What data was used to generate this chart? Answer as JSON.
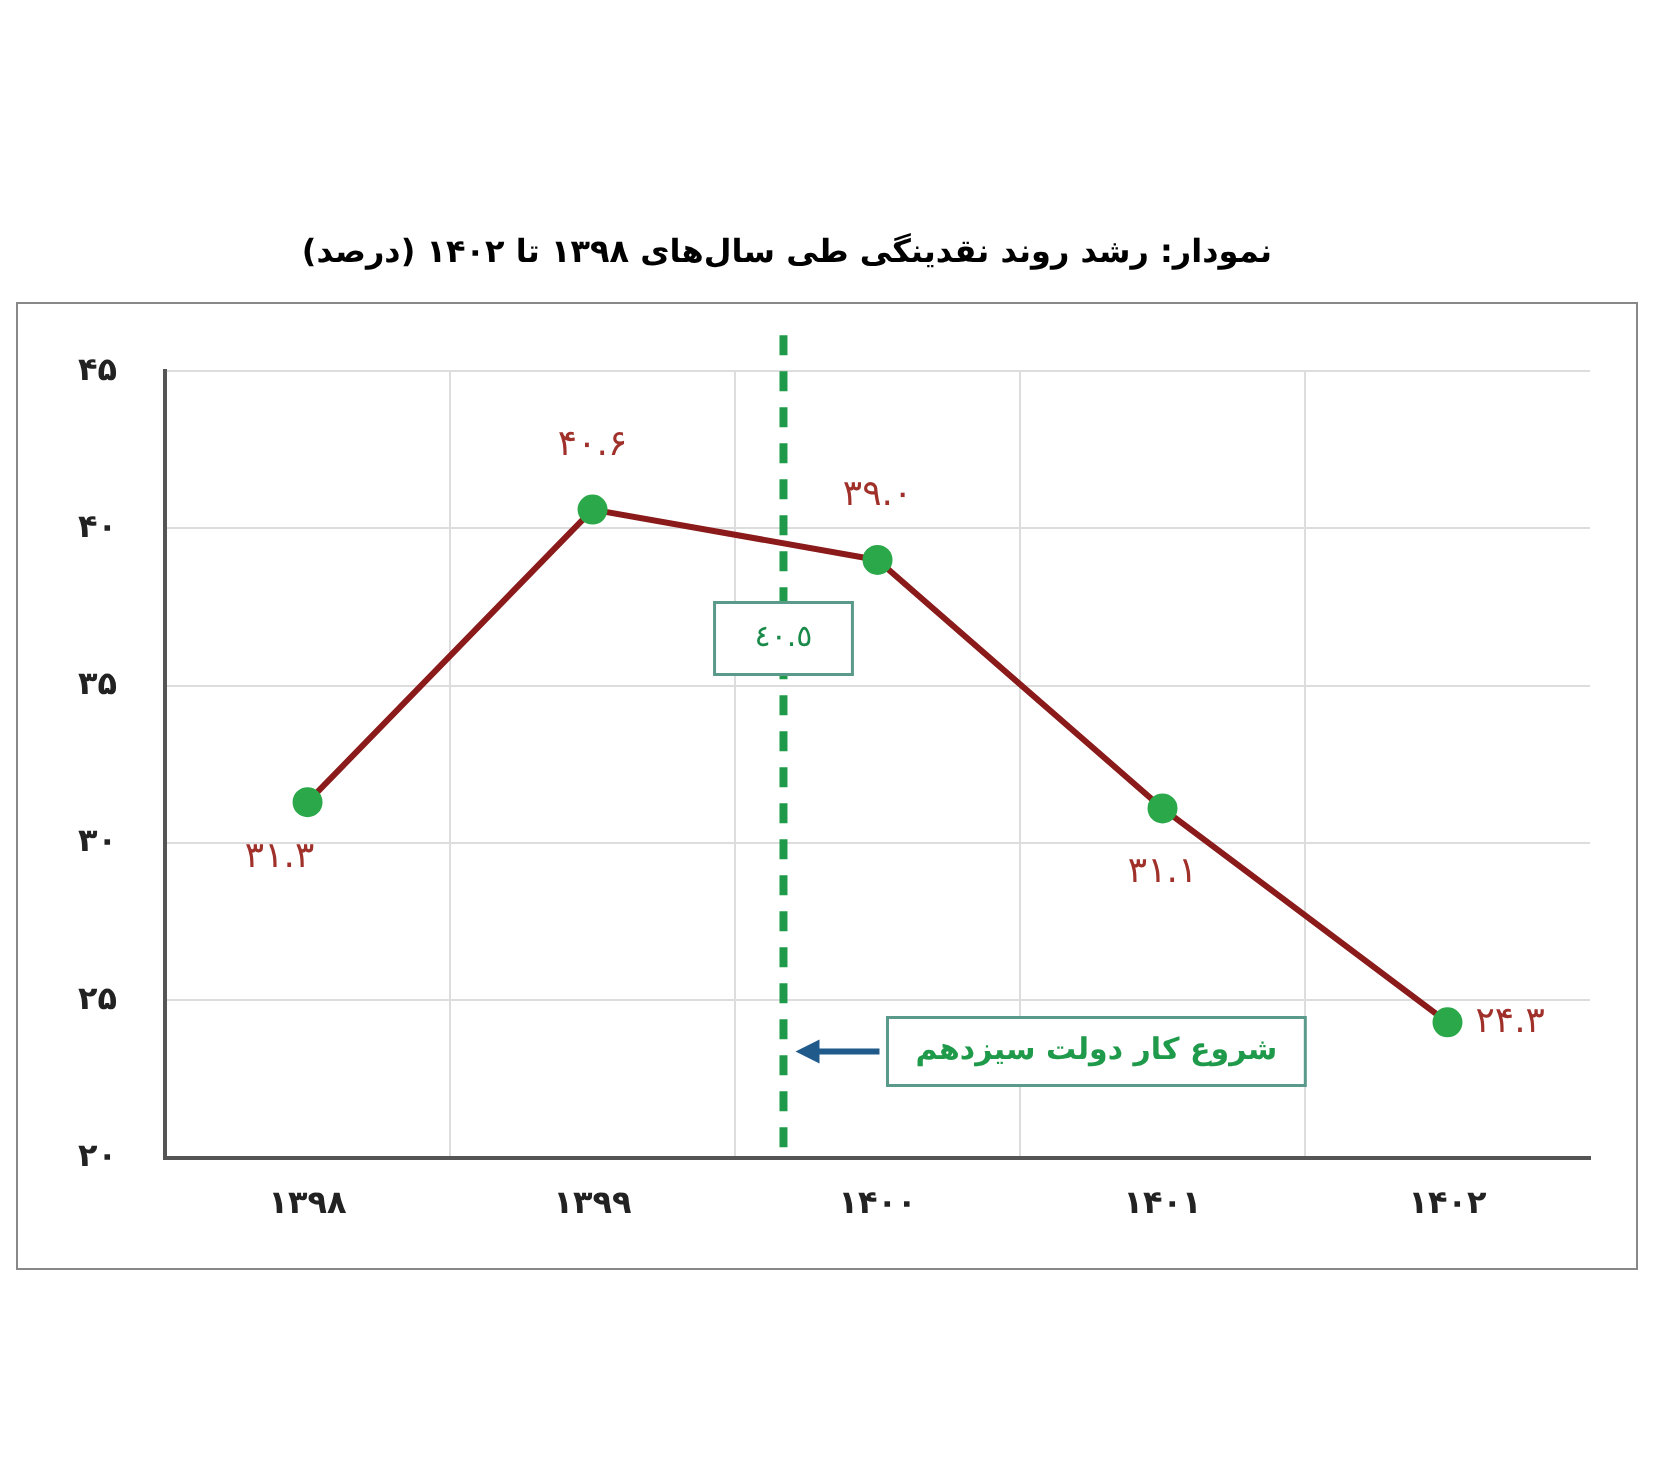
{
  "chart_data": {
    "type": "line",
    "title": "نمودار: رشد روند نقدینگی طی سال‌های ۱۳۹۸ تا ۱۴۰۲ (درصد)",
    "x": [
      1398,
      1399,
      1400,
      1401,
      1402
    ],
    "series": [
      {
        "color": "#8b1a1a",
        "values": [
          31.3,
          40.6,
          39.0,
          31.1,
          24.3
        ],
        "value_labels": [
          "۳۱.۳",
          "۴۰.۶",
          "۳۹.۰",
          "۳۱.۱",
          "۲۴.۳"
        ]
      }
    ],
    "marker": "circle",
    "xlim": [
      1397.5,
      1402.5
    ],
    "xticks": [
      {
        "value": 1398,
        "label": "۱۳۹۸"
      },
      {
        "value": 1398.5,
        "label": null
      },
      {
        "value": 1399,
        "label": "۱۳۹۹"
      },
      {
        "value": 1399.5,
        "label": null
      },
      {
        "value": 1400,
        "label": "۱۴۰۰"
      },
      {
        "value": 1400.5,
        "label": null
      },
      {
        "value": 1401,
        "label": "۱۴۰۱"
      },
      {
        "value": 1401.5,
        "label": null
      },
      {
        "value": 1402,
        "label": "۱۴۰۲"
      }
    ],
    "ylim": [
      20,
      45
    ],
    "yticks": [
      {
        "value": 20,
        "label": "۲۰"
      },
      {
        "value": 25,
        "label": "۲۵"
      },
      {
        "value": 30,
        "label": "۳۰"
      },
      {
        "value": 35,
        "label": "۳۵"
      },
      {
        "value": 40,
        "label": "۴۰"
      },
      {
        "value": 45,
        "label": "۴۵"
      }
    ],
    "grid": true,
    "ref_lines": [
      {
        "axis": "x",
        "value": 1399.67,
        "label": "شروع کار دولت سیزدهم",
        "color": "#1f9a4a",
        "line_style": "dashed"
      }
    ],
    "annotations": [
      {
        "text": "٤٠.٥",
        "x": 1399.67,
        "y": 36.5
      }
    ]
  }
}
